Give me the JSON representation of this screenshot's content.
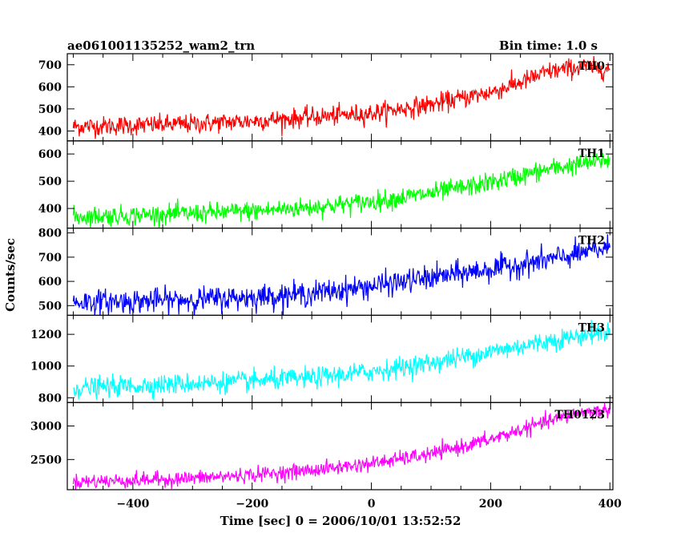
{
  "header": {
    "title": "ae061001135252_wam2_trn",
    "bin_time": "Bin time: 1.0 s"
  },
  "chart_data": {
    "type": "line",
    "xlabel": "Time [sec] 0 = 2006/10/01 13:52:52",
    "ylabel": "Counts/sec",
    "xlim": [
      -510,
      405
    ],
    "x_ticks": [
      -400,
      -200,
      0,
      200,
      400
    ],
    "x_tick_labels": [
      "−400",
      "−200",
      "0",
      "200",
      "400"
    ],
    "grid": false,
    "sampling_interval_s": 1.0,
    "panels": [
      {
        "name": "TH0",
        "color": "#ff0000",
        "ylim": [
          355,
          750
        ],
        "yticks": [
          400,
          500,
          600,
          700
        ],
        "trend_x": [
          -500,
          -400,
          -300,
          -200,
          -100,
          0,
          100,
          200,
          250,
          300,
          350,
          400
        ],
        "trend_y": [
          420,
          425,
          432,
          445,
          462,
          480,
          520,
          575,
          620,
          670,
          690,
          680
        ],
        "noise_sd": 22
      },
      {
        "name": "TH1",
        "color": "#00ff00",
        "ylim": [
          328,
          648
        ],
        "yticks": [
          400,
          500,
          600
        ],
        "trend_x": [
          -500,
          -400,
          -300,
          -200,
          -100,
          0,
          100,
          200,
          300,
          400
        ],
        "trend_y": [
          370,
          375,
          382,
          390,
          405,
          425,
          455,
          495,
          545,
          580
        ],
        "noise_sd": 18
      },
      {
        "name": "TH2",
        "color": "#0000ff",
        "ylim": [
          460,
          820
        ],
        "yticks": [
          500,
          600,
          700,
          800
        ],
        "trend_x": [
          -500,
          -400,
          -300,
          -200,
          -100,
          0,
          100,
          200,
          300,
          400
        ],
        "trend_y": [
          515,
          518,
          525,
          535,
          550,
          580,
          615,
          650,
          690,
          740
        ],
        "noise_sd": 25
      },
      {
        "name": "TH3",
        "color": "#00ffff",
        "ylim": [
          770,
          1320
        ],
        "yticks": [
          800,
          1000,
          1200
        ],
        "trend_x": [
          -500,
          -400,
          -300,
          -200,
          -100,
          0,
          100,
          200,
          300,
          400
        ],
        "trend_y": [
          860,
          875,
          890,
          905,
          925,
          965,
          1020,
          1090,
          1160,
          1220
        ],
        "noise_sd": 32
      },
      {
        "name": "TH0123",
        "color": "#ff00ff",
        "ylim": [
          2050,
          3350
        ],
        "yticks": [
          2500,
          3000
        ],
        "trend_x": [
          -500,
          -400,
          -300,
          -200,
          -100,
          0,
          100,
          200,
          300,
          350,
          400
        ],
        "trend_y": [
          2170,
          2190,
          2220,
          2270,
          2340,
          2440,
          2580,
          2800,
          3080,
          3200,
          3240
        ],
        "noise_sd": 55
      }
    ]
  }
}
